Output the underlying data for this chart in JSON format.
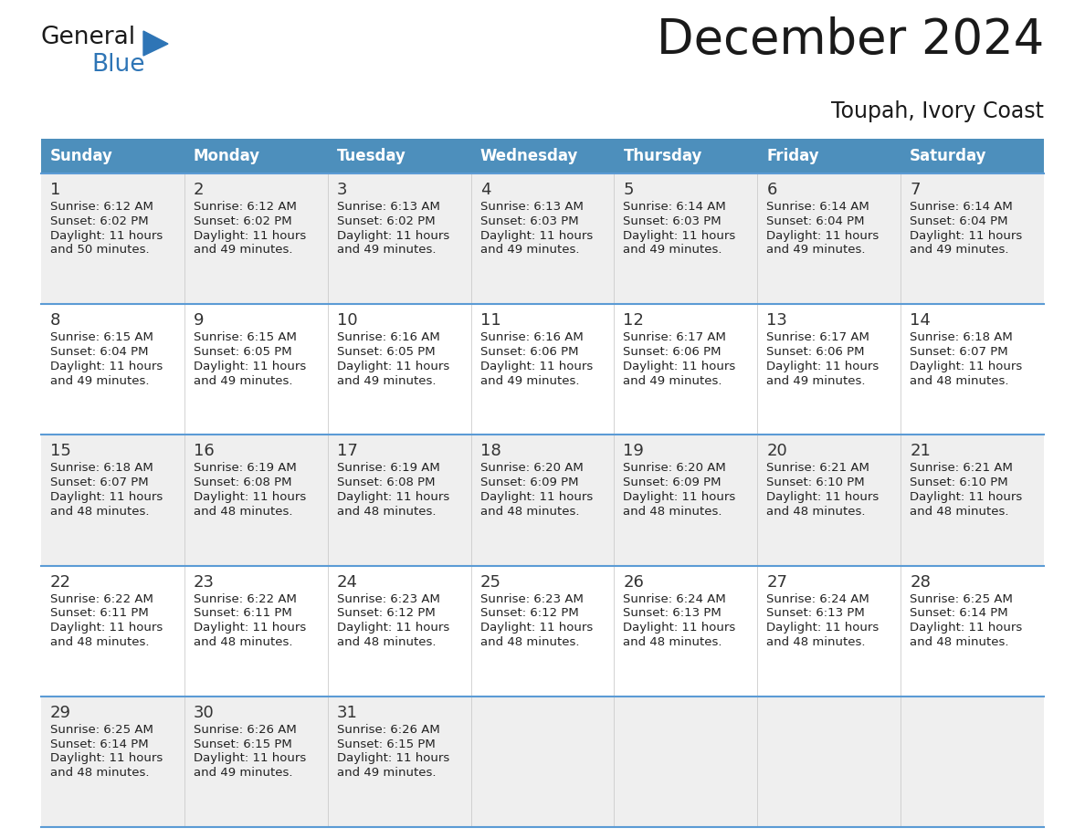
{
  "title": "December 2024",
  "subtitle": "Toupah, Ivory Coast",
  "header_color": "#4d8fbc",
  "header_text_color": "#FFFFFF",
  "days_of_week": [
    "Sunday",
    "Monday",
    "Tuesday",
    "Wednesday",
    "Thursday",
    "Friday",
    "Saturday"
  ],
  "weeks": [
    [
      {
        "day": 1,
        "sunrise": "6:12 AM",
        "sunset": "6:02 PM",
        "daylight": "11 hours and 50 minutes."
      },
      {
        "day": 2,
        "sunrise": "6:12 AM",
        "sunset": "6:02 PM",
        "daylight": "11 hours and 49 minutes."
      },
      {
        "day": 3,
        "sunrise": "6:13 AM",
        "sunset": "6:02 PM",
        "daylight": "11 hours and 49 minutes."
      },
      {
        "day": 4,
        "sunrise": "6:13 AM",
        "sunset": "6:03 PM",
        "daylight": "11 hours and 49 minutes."
      },
      {
        "day": 5,
        "sunrise": "6:14 AM",
        "sunset": "6:03 PM",
        "daylight": "11 hours and 49 minutes."
      },
      {
        "day": 6,
        "sunrise": "6:14 AM",
        "sunset": "6:04 PM",
        "daylight": "11 hours and 49 minutes."
      },
      {
        "day": 7,
        "sunrise": "6:14 AM",
        "sunset": "6:04 PM",
        "daylight": "11 hours and 49 minutes."
      }
    ],
    [
      {
        "day": 8,
        "sunrise": "6:15 AM",
        "sunset": "6:04 PM",
        "daylight": "11 hours and 49 minutes."
      },
      {
        "day": 9,
        "sunrise": "6:15 AM",
        "sunset": "6:05 PM",
        "daylight": "11 hours and 49 minutes."
      },
      {
        "day": 10,
        "sunrise": "6:16 AM",
        "sunset": "6:05 PM",
        "daylight": "11 hours and 49 minutes."
      },
      {
        "day": 11,
        "sunrise": "6:16 AM",
        "sunset": "6:06 PM",
        "daylight": "11 hours and 49 minutes."
      },
      {
        "day": 12,
        "sunrise": "6:17 AM",
        "sunset": "6:06 PM",
        "daylight": "11 hours and 49 minutes."
      },
      {
        "day": 13,
        "sunrise": "6:17 AM",
        "sunset": "6:06 PM",
        "daylight": "11 hours and 49 minutes."
      },
      {
        "day": 14,
        "sunrise": "6:18 AM",
        "sunset": "6:07 PM",
        "daylight": "11 hours and 48 minutes."
      }
    ],
    [
      {
        "day": 15,
        "sunrise": "6:18 AM",
        "sunset": "6:07 PM",
        "daylight": "11 hours and 48 minutes."
      },
      {
        "day": 16,
        "sunrise": "6:19 AM",
        "sunset": "6:08 PM",
        "daylight": "11 hours and 48 minutes."
      },
      {
        "day": 17,
        "sunrise": "6:19 AM",
        "sunset": "6:08 PM",
        "daylight": "11 hours and 48 minutes."
      },
      {
        "day": 18,
        "sunrise": "6:20 AM",
        "sunset": "6:09 PM",
        "daylight": "11 hours and 48 minutes."
      },
      {
        "day": 19,
        "sunrise": "6:20 AM",
        "sunset": "6:09 PM",
        "daylight": "11 hours and 48 minutes."
      },
      {
        "day": 20,
        "sunrise": "6:21 AM",
        "sunset": "6:10 PM",
        "daylight": "11 hours and 48 minutes."
      },
      {
        "day": 21,
        "sunrise": "6:21 AM",
        "sunset": "6:10 PM",
        "daylight": "11 hours and 48 minutes."
      }
    ],
    [
      {
        "day": 22,
        "sunrise": "6:22 AM",
        "sunset": "6:11 PM",
        "daylight": "11 hours and 48 minutes."
      },
      {
        "day": 23,
        "sunrise": "6:22 AM",
        "sunset": "6:11 PM",
        "daylight": "11 hours and 48 minutes."
      },
      {
        "day": 24,
        "sunrise": "6:23 AM",
        "sunset": "6:12 PM",
        "daylight": "11 hours and 48 minutes."
      },
      {
        "day": 25,
        "sunrise": "6:23 AM",
        "sunset": "6:12 PM",
        "daylight": "11 hours and 48 minutes."
      },
      {
        "day": 26,
        "sunrise": "6:24 AM",
        "sunset": "6:13 PM",
        "daylight": "11 hours and 48 minutes."
      },
      {
        "day": 27,
        "sunrise": "6:24 AM",
        "sunset": "6:13 PM",
        "daylight": "11 hours and 48 minutes."
      },
      {
        "day": 28,
        "sunrise": "6:25 AM",
        "sunset": "6:14 PM",
        "daylight": "11 hours and 48 minutes."
      }
    ],
    [
      {
        "day": 29,
        "sunrise": "6:25 AM",
        "sunset": "6:14 PM",
        "daylight": "11 hours and 48 minutes."
      },
      {
        "day": 30,
        "sunrise": "6:26 AM",
        "sunset": "6:15 PM",
        "daylight": "11 hours and 49 minutes."
      },
      {
        "day": 31,
        "sunrise": "6:26 AM",
        "sunset": "6:15 PM",
        "daylight": "11 hours and 49 minutes."
      },
      null,
      null,
      null,
      null
    ]
  ],
  "bg_color": "#FFFFFF",
  "cell_bg_even": "#EFEFEF",
  "cell_bg_odd": "#FFFFFF",
  "grid_line_color": "#5b9bd5",
  "text_color": "#222222",
  "day_num_color": "#333333",
  "logo_general_color": "#1a1a1a",
  "logo_blue_color": "#2E75B6",
  "logo_triangle_color": "#2E75B6",
  "title_fontsize": 38,
  "subtitle_fontsize": 17,
  "header_fontsize": 12,
  "day_num_fontsize": 13,
  "cell_text_fontsize": 9.5
}
